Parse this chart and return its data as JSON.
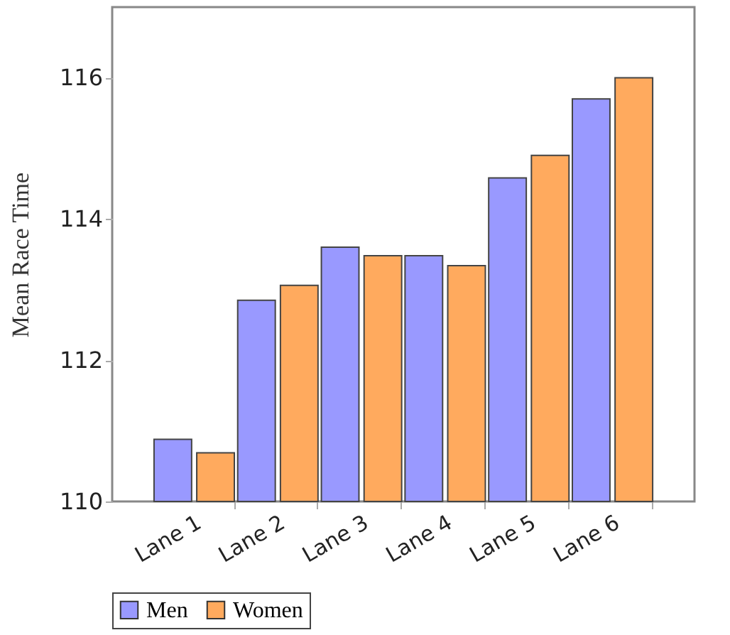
{
  "chart_data": {
    "type": "bar",
    "ylabel": "Mean Race Time",
    "categories": [
      "Lane 1",
      "Lane 2",
      "Lane 3",
      "Lane 4",
      "Lane 5",
      "Lane 6"
    ],
    "series": [
      {
        "name": "Men",
        "color": "#9999ff",
        "values": [
          110.88,
          112.85,
          113.6,
          113.48,
          114.58,
          115.7
        ]
      },
      {
        "name": "Women",
        "color": "#ffaa5e",
        "values": [
          110.69,
          113.06,
          113.48,
          113.34,
          114.9,
          116.0
        ]
      }
    ],
    "ylim": [
      110,
      117
    ],
    "yticks": [
      110,
      112,
      114,
      116
    ],
    "grid": false,
    "legend": "bottom"
  }
}
